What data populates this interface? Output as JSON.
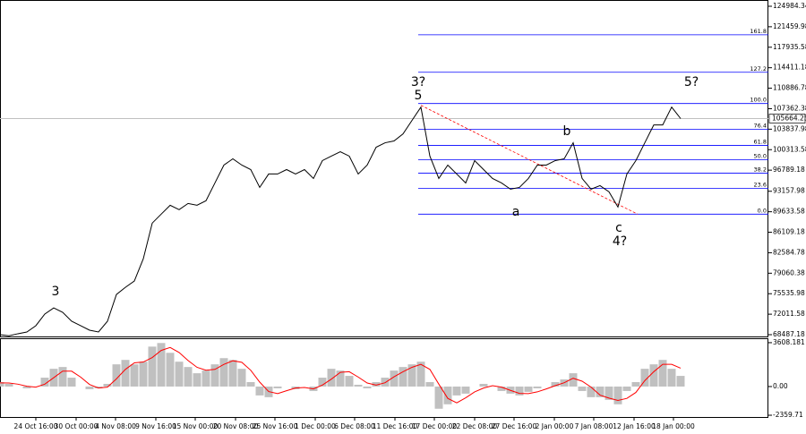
{
  "chart_data": [
    {
      "type": "line",
      "x": [
        0,
        1,
        2,
        3,
        4,
        5,
        6,
        7,
        8,
        9,
        10,
        11,
        12,
        13,
        14,
        15,
        16,
        17,
        18,
        19,
        20,
        21,
        22,
        23,
        24,
        25,
        26,
        27,
        28,
        29,
        30,
        31,
        32,
        33,
        34,
        35,
        36,
        37,
        38,
        39,
        40,
        41,
        42,
        43,
        44,
        45,
        46,
        47,
        48,
        49,
        50,
        51,
        52,
        53,
        54,
        55,
        56,
        57,
        58,
        59,
        60,
        61,
        62,
        63,
        64,
        65,
        66,
        67,
        68,
        69,
        70,
        71,
        72,
        73,
        74,
        75,
        76
      ],
      "series": [
        {
          "color": "#000000",
          "values": [
            68496,
            68300,
            68650,
            68950,
            70030,
            72030,
            73100,
            72330,
            70800,
            70030,
            69260,
            68950,
            70800,
            75400,
            76630,
            77710,
            81540,
            87680,
            89220,
            90750,
            89990,
            91060,
            90750,
            91520,
            94590,
            97660,
            98740,
            97660,
            96890,
            93820,
            96130,
            96130,
            96890,
            96130,
            96890,
            95360,
            98430,
            99200,
            99960,
            99200,
            96130,
            97660,
            100730,
            101500,
            101810,
            103030,
            105340,
            107640,
            99200,
            95360,
            97660,
            96130,
            94590,
            98430,
            96890,
            95360,
            94590,
            93520,
            93820,
            95360,
            97660,
            97660,
            98430,
            98740,
            101500,
            95360,
            93520,
            94130,
            93060,
            90450,
            96130,
            98430,
            101500,
            104570,
            104570,
            107640,
            105664
          ]
        }
      ],
      "xlim": [
        0,
        85.8
      ],
      "ylim": [
        68180,
        126060
      ],
      "xticks": [
        {
          "value": 4.0,
          "label": "24 Oct 16:00"
        },
        {
          "value": 8.5,
          "label": "30 Oct 00:00"
        },
        {
          "value": 12.9,
          "label": "4 Nov 08:00"
        },
        {
          "value": 17.4,
          "label": "9 Nov 16:00"
        },
        {
          "value": 21.8,
          "label": "15 Nov 00:00"
        },
        {
          "value": 26.3,
          "label": "20 Nov 08:00"
        },
        {
          "value": 30.7,
          "label": "25 Nov 16:00"
        },
        {
          "value": 35.2,
          "label": "1 Dec 00:00"
        },
        {
          "value": 39.6,
          "label": "6 Dec 08:00"
        },
        {
          "value": 44.1,
          "label": "11 Dec 16:00"
        },
        {
          "value": 48.5,
          "label": "17 Dec 00:00"
        },
        {
          "value": 53.0,
          "label": "22 Dec 08:00"
        },
        {
          "value": 57.4,
          "label": "27 Dec 16:00"
        },
        {
          "value": 61.9,
          "label": "2 Jan 00:00"
        },
        {
          "value": 66.3,
          "label": "7 Jan 08:00"
        },
        {
          "value": 70.8,
          "label": "12 Jan 16:00"
        },
        {
          "value": 75.2,
          "label": "18 Jan 00:00"
        }
      ],
      "yticks": [
        124984.34,
        121459.98,
        117935.58,
        114411.18,
        110886.78,
        107362.38,
        103837.98,
        100313.58,
        96789.18,
        93157.98,
        89633.58,
        86109.18,
        82584.78,
        79060.38,
        75535.98,
        72011.58,
        68487.18
      ],
      "current_price": 105664.25,
      "price_line_color": "#c0c0c0",
      "fibonacci": {
        "color": "#0000ff",
        "x_start": 46.7,
        "levels": [
          {
            "price": 120073,
            "label": "161.8"
          },
          {
            "price": 113626,
            "label": "127.2"
          },
          {
            "price": 108253,
            "label": "100.0"
          },
          {
            "price": 103802,
            "label": "76.4"
          },
          {
            "price": 101037,
            "label": "61.8"
          },
          {
            "price": 98583,
            "label": "50.0"
          },
          {
            "price": 96280,
            "label": "38.2"
          },
          {
            "price": 93670,
            "label": "23.6"
          },
          {
            "price": 89219,
            "label": "0.0"
          }
        ]
      },
      "trend_line": {
        "color": "#ff0000",
        "x": [
          47.0,
          71.2
        ],
        "y": [
          107946,
          89219
        ]
      },
      "annotations": [
        {
          "text": "3",
          "color": "#e00000"
        },
        {
          "text": "3?",
          "color": "#0000cc"
        },
        {
          "text": "5",
          "color": "#e00000"
        },
        {
          "text": "b",
          "color": "#e00000"
        },
        {
          "text": "a",
          "color": "#e00000"
        },
        {
          "text": "c",
          "color": "#e00000"
        },
        {
          "text": "4?",
          "color": "#0000cc"
        },
        {
          "text": "5?",
          "color": "#0000cc"
        }
      ]
    },
    {
      "type": "bar",
      "x": [
        0,
        1,
        2,
        3,
        4,
        5,
        6,
        7,
        8,
        9,
        10,
        11,
        12,
        13,
        14,
        15,
        16,
        17,
        18,
        19,
        20,
        21,
        22,
        23,
        24,
        25,
        26,
        27,
        28,
        29,
        30,
        31,
        32,
        33,
        34,
        35,
        36,
        37,
        38,
        39,
        40,
        41,
        42,
        43,
        44,
        45,
        46,
        47,
        48,
        49,
        50,
        51,
        52,
        53,
        54,
        55,
        56,
        57,
        58,
        59,
        60,
        61,
        62,
        63,
        64,
        65,
        66,
        67,
        68,
        69,
        70,
        71,
        72,
        73,
        74,
        75,
        76
      ],
      "series": [
        {
          "color": "#c0c0c0",
          "values": [
            365,
            219,
            0,
            -146,
            0,
            730,
            1460,
            1606,
            730,
            0,
            -219,
            -146,
            219,
            1825,
            2190,
            1825,
            2044,
            3285,
            3580,
            2774,
            2044,
            1606,
            1095,
            1314,
            1825,
            2336,
            2190,
            1460,
            365,
            -730,
            -876,
            -146,
            0,
            -219,
            0,
            -365,
            730,
            1460,
            1314,
            876,
            146,
            -146,
            365,
            730,
            1314,
            1606,
            1825,
            2044,
            365,
            -1825,
            -1460,
            -730,
            -584,
            0,
            219,
            0,
            -365,
            -584,
            -730,
            -438,
            -146,
            0,
            365,
            584,
            1095,
            -365,
            -876,
            -876,
            -1095,
            -1460,
            -365,
            365,
            1460,
            1825,
            2190,
            1460,
            876
          ]
        },
        {
          "color": "#ff0000",
          "values": [
            300,
            292,
            195,
            24,
            -49,
            195,
            730,
            1265,
            1265,
            779,
            170,
            -122,
            -49,
            633,
            1411,
            1947,
            2020,
            2385,
            2970,
            3213,
            2799,
            2141,
            1582,
            1338,
            1411,
            1825,
            2117,
            1995,
            1338,
            365,
            -414,
            -584,
            -341,
            -122,
            -73,
            -195,
            122,
            608,
            1168,
            1217,
            779,
            292,
            122,
            316,
            803,
            1217,
            1582,
            1825,
            1411,
            195,
            -973,
            -1338,
            -925,
            -438,
            -122,
            73,
            -49,
            -316,
            -560,
            -584,
            -438,
            -195,
            73,
            316,
            681,
            438,
            -49,
            -706,
            -949,
            -1144,
            -973,
            -487,
            487,
            1217,
            1825,
            1825,
            1509
          ]
        }
      ],
      "xlim": [
        0,
        85.8
      ],
      "ylim": [
        -2505,
        3972
      ],
      "yticks": [
        3608.181,
        {
          "value": 0,
          "label": "0.00"
        },
        -2359.71
      ]
    }
  ]
}
